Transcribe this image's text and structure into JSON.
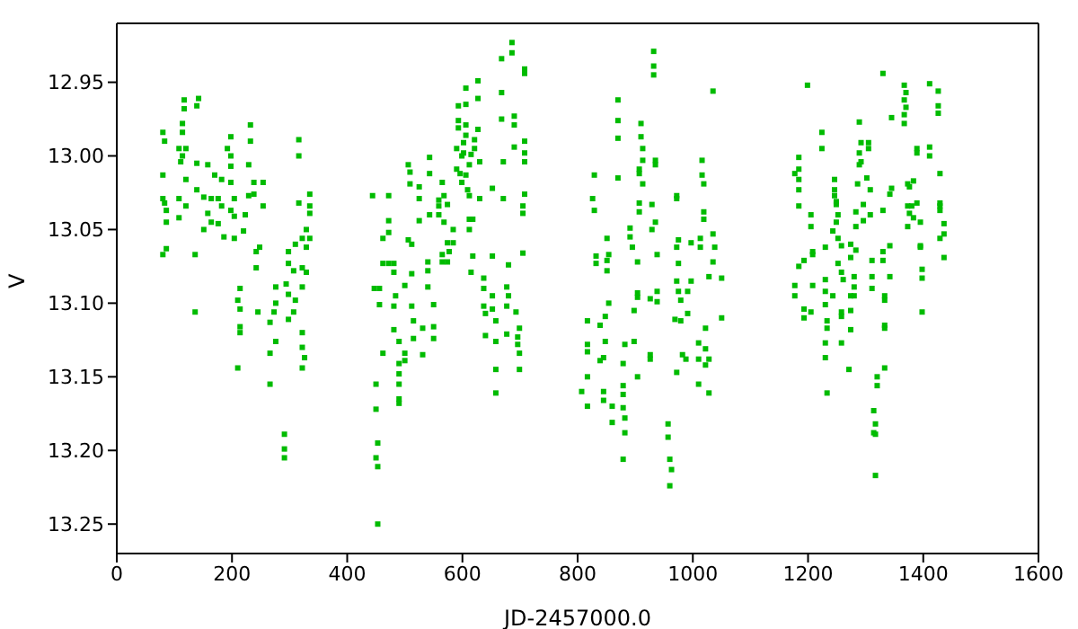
{
  "chart_data": {
    "type": "scatter",
    "xlabel": "JD-2457000.0",
    "ylabel": "V",
    "xlim": [
      0,
      1600
    ],
    "xticks": [
      0,
      200,
      400,
      600,
      800,
      1000,
      1200,
      1400,
      1600
    ],
    "ylim": [
      13.27,
      12.91
    ],
    "yticks": [
      12.95,
      {
        "value": 13.0,
        "label": "13.00"
      },
      13.05,
      {
        "value": 13.1,
        "label": "13.10"
      },
      13.15,
      {
        "value": 13.2,
        "label": "13.20"
      },
      13.25
    ],
    "grid": false,
    "marker": "square",
    "series": [
      {
        "color": "#00bb00",
        "x": [
          80,
          83,
          80,
          80,
          83,
          86,
          86,
          80,
          86,
          114,
          114,
          108,
          120,
          114,
          111,
          120,
          108,
          120,
          108,
          136,
          136,
          117,
          117,
          142,
          139,
          139,
          139,
          158,
          151,
          158,
          151,
          170,
          164,
          176,
          182,
          182,
          164,
          176,
          186,
          198,
          192,
          198,
          198,
          198,
          204,
          198,
          204,
          204,
          220,
          223,
          229,
          238,
          238,
          254,
          254,
          232,
          232,
          229,
          242,
          248,
          242,
          214,
          210,
          214,
          214,
          214,
          210,
          245,
          266,
          273,
          276,
          276,
          276,
          266,
          266,
          294,
          298,
          298,
          298,
          310,
          307,
          310,
          307,
          298,
          322,
          322,
          329,
          316,
          316,
          316,
          322,
          329,
          329,
          335,
          335,
          335,
          335,
          322,
          322,
          326,
          322,
          291,
          291,
          291,
          444,
          472,
          472,
          472,
          462,
          462,
          472,
          481,
          481,
          447,
          456,
          456,
          484,
          481,
          481,
          490,
          462,
          490,
          490,
          490,
          490,
          490,
          450,
          450,
          453,
          450,
          453,
          453,
          500,
          500,
          500,
          512,
          512,
          515,
          515,
          531,
          531,
          506,
          509,
          509,
          525,
          525,
          525,
          506,
          512,
          543,
          543,
          543,
          540,
          540,
          540,
          550,
          550,
          550,
          559,
          559,
          559,
          565,
          568,
          568,
          574,
          574,
          584,
          584,
          577,
          565,
          565,
          574,
          590,
          590,
          593,
          593,
          593,
          606,
          606,
          606,
          606,
          602,
          602,
          599,
          596,
          606,
          599,
          609,
          612,
          615,
          612,
          621,
          621,
          627,
          627,
          627,
          630,
          630,
          612,
          618,
          612,
          618,
          615,
          637,
          637,
          637,
          640,
          640,
          652,
          652,
          652,
          652,
          658,
          658,
          658,
          658,
          668,
          668,
          668,
          671,
          671,
          680,
          677,
          680,
          677,
          677,
          686,
          686,
          690,
          690,
          690,
          693,
          696,
          696,
          699,
          699,
          699,
          708,
          708,
          708,
          708,
          708,
          708,
          705,
          705,
          705,
          817,
          817,
          817,
          817,
          807,
          817,
          839,
          839,
          845,
          848,
          848,
          845,
          845,
          860,
          860,
          854,
          829,
          826,
          829,
          832,
          832,
          851,
          851,
          854,
          851,
          870,
          870,
          870,
          870,
          879,
          879,
          879,
          879,
          882,
          882,
          879,
          882,
          891,
          891,
          895,
          898,
          898,
          904,
          904,
          904,
          904,
          907,
          907,
          907,
          907,
          910,
          910,
          913,
          913,
          913,
          926,
          926,
          926,
          929,
          929,
          932,
          932,
          932,
          935,
          935,
          935,
          938,
          938,
          938,
          957,
          957,
          960,
          963,
          960,
          972,
          972,
          975,
          972,
          975,
          972,
          975,
          979,
          969,
          979,
          972,
          982,
          988,
          991,
          991,
          997,
          997,
          1013,
          1013,
          1016,
          1016,
          1019,
          1019,
          1019,
          1010,
          1010,
          1010,
          1022,
          1022,
          1022,
          1028,
          1028,
          1028,
          1035,
          1035,
          1038,
          1035,
          1050,
          1050,
          1199,
          1177,
          1184,
          1184,
          1184,
          1184,
          1184,
          1205,
          1205,
          1208,
          1208,
          1193,
          1184,
          1177,
          1177,
          1208,
          1193,
          1193,
          1205,
          1224,
          1224,
          1246,
          1246,
          1246,
          1249,
          1249,
          1252,
          1249,
          1243,
          1252,
          1258,
          1230,
          1252,
          1230,
          1258,
          1261,
          1243,
          1230,
          1230,
          1233,
          1233,
          1230,
          1230,
          1233,
          1258,
          1258,
          1258,
          1274,
          1274,
          1274,
          1271,
          1274,
          1274,
          1280,
          1280,
          1280,
          1283,
          1283,
          1283,
          1286,
          1289,
          1289,
          1292,
          1292,
          1289,
          1296,
          1296,
          1305,
          1305,
          1302,
          1308,
          1308,
          1311,
          1311,
          1311,
          1320,
          1320,
          1314,
          1317,
          1314,
          1317,
          1317,
          1330,
          1330,
          1330,
          1330,
          1333,
          1333,
          1333,
          1333,
          1333,
          1342,
          1342,
          1342,
          1345,
          1345,
          1367,
          1367,
          1370,
          1370,
          1367,
          1367,
          1373,
          1376,
          1373,
          1380,
          1376,
          1383,
          1373,
          1383,
          1389,
          1389,
          1389,
          1395,
          1395,
          1395,
          1398,
          1398,
          1398,
          1411,
          1411,
          1411,
          1426,
          1426,
          1426,
          1429,
          1429,
          1429,
          1429,
          1429,
          1436,
          1436,
          1436
        ],
        "values": [
          12.984,
          12.99,
          13.013,
          13.029,
          13.032,
          13.037,
          13.045,
          13.067,
          13.063,
          12.978,
          12.984,
          12.995,
          12.995,
          13.0,
          13.004,
          13.016,
          13.029,
          13.034,
          13.042,
          13.067,
          13.106,
          12.962,
          12.968,
          12.961,
          12.966,
          13.005,
          13.023,
          13.006,
          13.028,
          13.039,
          13.05,
          13.013,
          13.029,
          13.029,
          13.016,
          13.034,
          13.045,
          13.046,
          13.055,
          12.987,
          12.995,
          13.0,
          13.007,
          13.018,
          13.029,
          13.037,
          13.041,
          13.056,
          13.051,
          13.04,
          13.027,
          13.018,
          13.026,
          13.018,
          13.034,
          12.979,
          12.99,
          13.006,
          13.065,
          13.062,
          13.076,
          13.09,
          13.098,
          13.104,
          13.116,
          13.12,
          13.144,
          13.106,
          13.113,
          13.106,
          13.1,
          13.089,
          13.126,
          13.134,
          13.155,
          13.087,
          13.094,
          13.073,
          13.065,
          13.06,
          13.078,
          13.098,
          13.106,
          13.111,
          13.089,
          13.076,
          13.079,
          12.989,
          13.0,
          13.032,
          13.056,
          13.062,
          13.05,
          13.026,
          13.034,
          13.039,
          13.056,
          13.12,
          13.13,
          13.137,
          13.144,
          13.189,
          13.199,
          13.205,
          13.027,
          13.027,
          13.044,
          13.052,
          13.056,
          13.073,
          13.073,
          13.073,
          13.079,
          13.09,
          13.09,
          13.101,
          13.095,
          13.102,
          13.118,
          13.126,
          13.134,
          13.141,
          13.148,
          13.155,
          13.165,
          13.168,
          13.155,
          13.172,
          13.195,
          13.205,
          13.211,
          13.25,
          13.134,
          13.139,
          13.088,
          13.08,
          13.102,
          13.112,
          13.124,
          13.117,
          13.135,
          13.006,
          13.011,
          13.019,
          13.021,
          13.029,
          13.044,
          13.057,
          13.06,
          13.001,
          13.012,
          13.04,
          13.072,
          13.078,
          13.089,
          13.101,
          13.116,
          13.124,
          13.03,
          13.034,
          13.04,
          13.018,
          13.027,
          13.045,
          13.033,
          13.059,
          13.05,
          13.059,
          13.065,
          13.067,
          13.072,
          13.072,
          12.995,
          13.009,
          12.966,
          12.976,
          12.981,
          12.954,
          12.965,
          12.979,
          12.986,
          12.991,
          12.998,
          13.0,
          13.012,
          13.013,
          13.018,
          13.023,
          13.027,
          12.999,
          13.006,
          12.989,
          12.995,
          12.949,
          12.961,
          12.982,
          13.004,
          13.029,
          13.043,
          13.043,
          13.05,
          13.068,
          13.079,
          13.083,
          13.09,
          13.102,
          13.107,
          13.122,
          13.022,
          13.068,
          13.095,
          13.104,
          13.112,
          13.126,
          13.145,
          13.161,
          12.934,
          12.957,
          12.975,
          13.004,
          13.029,
          13.074,
          13.089,
          13.095,
          13.102,
          13.121,
          12.923,
          12.93,
          12.973,
          12.979,
          12.994,
          13.106,
          13.123,
          13.128,
          13.117,
          13.134,
          13.145,
          12.941,
          12.944,
          12.99,
          12.998,
          13.004,
          13.026,
          13.034,
          13.039,
          13.066,
          13.112,
          13.128,
          13.133,
          13.15,
          13.16,
          13.17,
          13.115,
          13.139,
          13.137,
          13.109,
          13.126,
          13.16,
          13.166,
          13.17,
          13.181,
          13.1,
          13.013,
          13.029,
          13.037,
          13.068,
          13.073,
          13.056,
          13.071,
          13.067,
          13.078,
          12.962,
          12.976,
          12.988,
          13.015,
          13.141,
          13.156,
          13.162,
          13.171,
          13.178,
          13.188,
          13.206,
          13.128,
          13.049,
          13.055,
          13.062,
          13.105,
          13.126,
          13.15,
          13.072,
          13.093,
          13.096,
          13.009,
          13.012,
          13.032,
          13.038,
          12.978,
          12.987,
          12.995,
          13.003,
          13.019,
          13.097,
          13.135,
          13.138,
          13.033,
          13.05,
          12.929,
          12.939,
          12.945,
          13.003,
          13.006,
          13.045,
          13.067,
          13.092,
          13.099,
          13.182,
          13.191,
          13.206,
          13.213,
          13.224,
          13.027,
          13.029,
          13.057,
          13.062,
          13.073,
          13.085,
          13.092,
          13.098,
          13.111,
          13.112,
          13.147,
          13.135,
          13.138,
          13.107,
          13.092,
          13.059,
          13.085,
          13.056,
          13.062,
          13.003,
          13.013,
          13.019,
          13.038,
          13.043,
          13.127,
          13.138,
          13.155,
          13.117,
          13.131,
          13.142,
          13.082,
          13.138,
          13.161,
          12.956,
          13.053,
          13.062,
          13.072,
          13.083,
          13.11,
          12.952,
          13.012,
          13.001,
          13.009,
          13.016,
          13.023,
          13.034,
          13.04,
          13.048,
          13.065,
          13.067,
          13.071,
          13.075,
          13.088,
          13.095,
          13.088,
          13.104,
          13.11,
          13.106,
          12.984,
          12.995,
          13.016,
          13.023,
          13.027,
          13.031,
          13.033,
          13.04,
          13.045,
          13.051,
          13.056,
          13.061,
          13.062,
          13.073,
          13.084,
          13.079,
          13.084,
          13.095,
          13.092,
          13.101,
          13.112,
          13.117,
          13.127,
          13.137,
          13.161,
          13.106,
          13.109,
          13.127,
          13.095,
          13.105,
          13.118,
          13.145,
          13.069,
          13.06,
          13.082,
          13.089,
          13.095,
          13.064,
          13.048,
          13.038,
          13.019,
          13.006,
          12.998,
          12.991,
          13.004,
          12.977,
          13.033,
          13.044,
          12.991,
          12.995,
          13.015,
          13.023,
          13.04,
          13.071,
          13.082,
          13.09,
          13.15,
          13.156,
          13.173,
          13.182,
          13.188,
          13.189,
          13.217,
          12.944,
          13.037,
          13.065,
          13.071,
          13.095,
          13.098,
          13.115,
          13.117,
          13.144,
          13.061,
          13.082,
          13.026,
          13.022,
          12.974,
          12.952,
          12.962,
          12.957,
          12.967,
          12.972,
          12.978,
          13.019,
          13.021,
          13.034,
          13.034,
          13.039,
          13.042,
          13.048,
          13.017,
          12.995,
          12.998,
          13.032,
          13.045,
          13.061,
          13.062,
          13.077,
          13.083,
          13.106,
          12.951,
          12.994,
          13.0,
          12.956,
          12.966,
          12.971,
          13.012,
          13.032,
          13.034,
          13.037,
          13.056,
          13.046,
          13.053,
          13.069
        ]
      }
    ]
  }
}
